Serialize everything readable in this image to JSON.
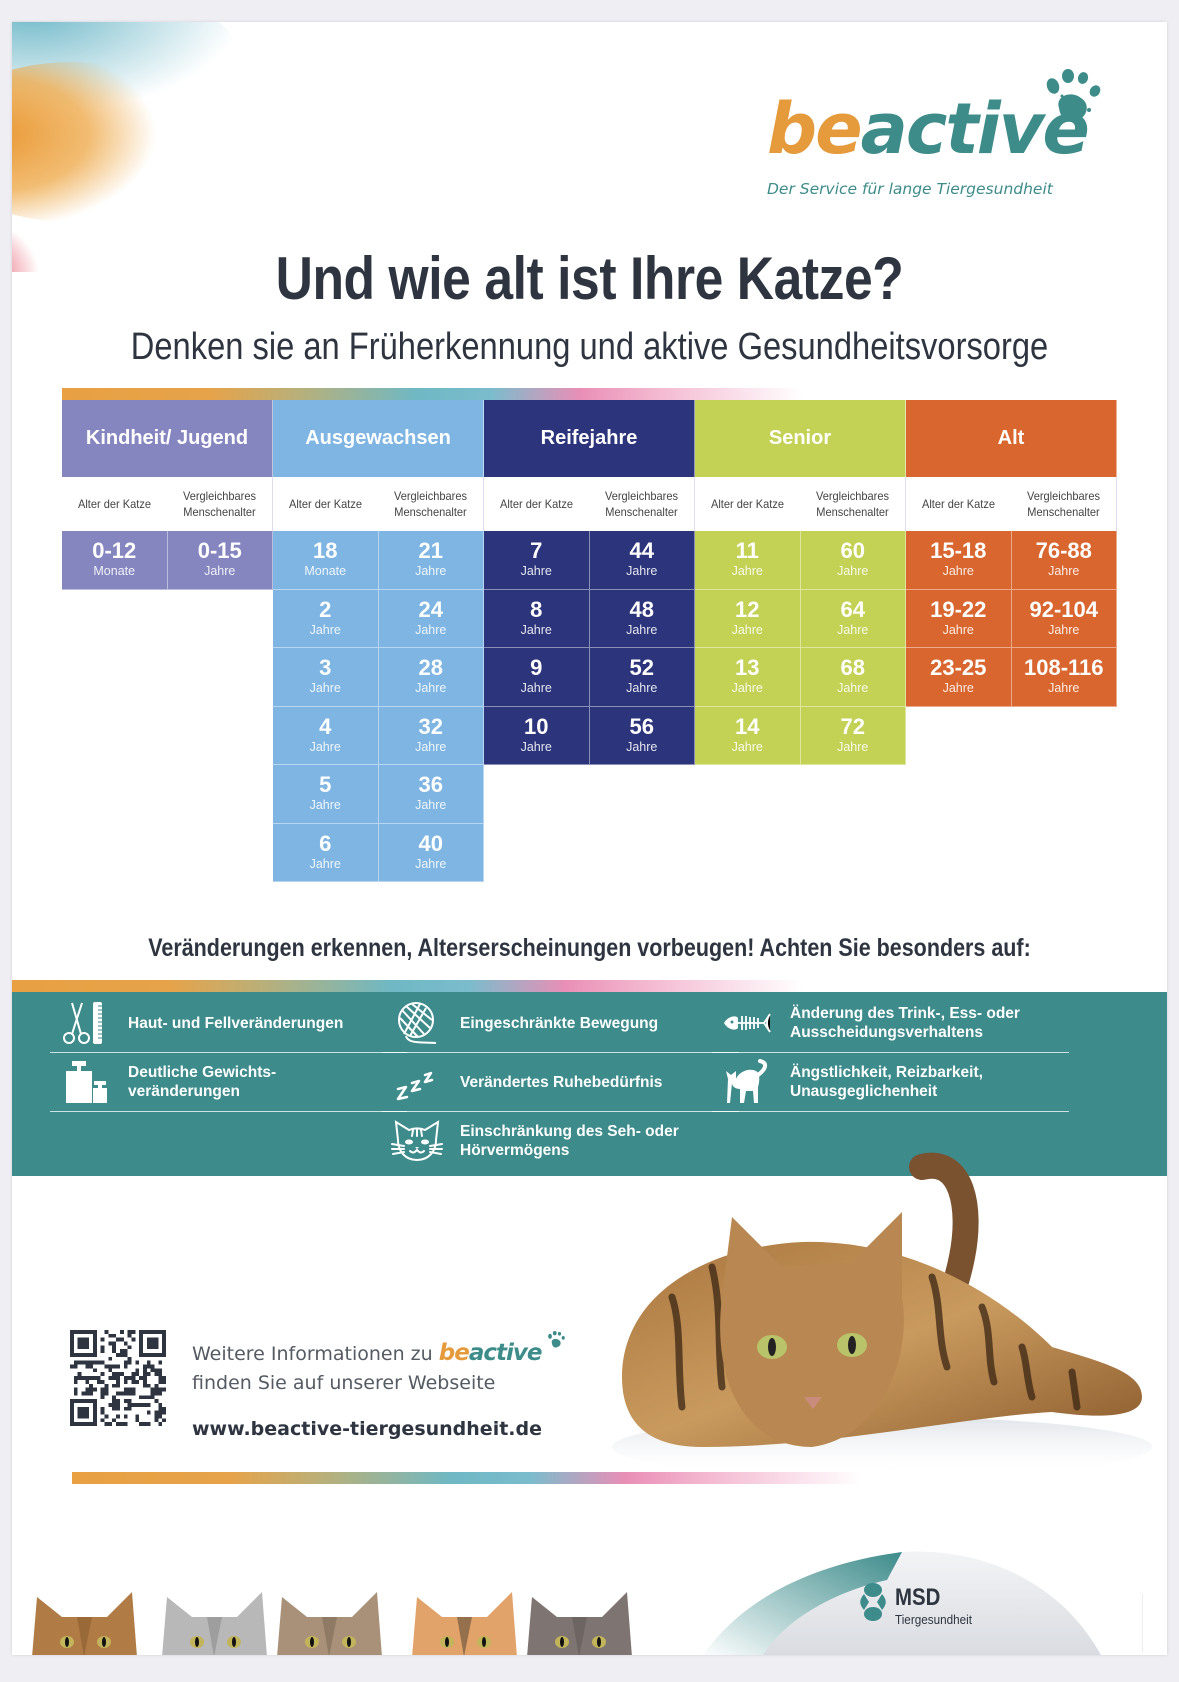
{
  "brand": {
    "logo_be": "be",
    "logo_active": "active",
    "tagline": "Der Service für lange Tiergesundheit",
    "colors": {
      "orange": "#e59a3b",
      "teal": "#3d8c8a"
    }
  },
  "title": "Und wie alt ist Ihre Katze?",
  "subtitle": "Denken sie an Früherkennung und aktive Gesundheitsvorsorge",
  "age_table": {
    "subheader": {
      "cat_age": "Alter der Katze",
      "human_age": "Vergleichbares Menschenalter"
    },
    "groups": [
      {
        "name": "Kindheit/ Jugend",
        "color": "#8586c0",
        "rows": [
          {
            "cat": "0-12",
            "cat_unit": "Monate",
            "human": "0-15",
            "human_unit": "Jahre"
          }
        ]
      },
      {
        "name": "Ausgewachsen",
        "color": "#7eb5e2",
        "rows": [
          {
            "cat": "18",
            "cat_unit": "Monate",
            "human": "21",
            "human_unit": "Jahre"
          },
          {
            "cat": "2",
            "cat_unit": "Jahre",
            "human": "24",
            "human_unit": "Jahre"
          },
          {
            "cat": "3",
            "cat_unit": "Jahre",
            "human": "28",
            "human_unit": "Jahre"
          },
          {
            "cat": "4",
            "cat_unit": "Jahre",
            "human": "32",
            "human_unit": "Jahre"
          },
          {
            "cat": "5",
            "cat_unit": "Jahre",
            "human": "36",
            "human_unit": "Jahre"
          },
          {
            "cat": "6",
            "cat_unit": "Jahre",
            "human": "40",
            "human_unit": "Jahre"
          }
        ]
      },
      {
        "name": "Reifejahre",
        "color": "#2c347b",
        "rows": [
          {
            "cat": "7",
            "cat_unit": "Jahre",
            "human": "44",
            "human_unit": "Jahre"
          },
          {
            "cat": "8",
            "cat_unit": "Jahre",
            "human": "48",
            "human_unit": "Jahre"
          },
          {
            "cat": "9",
            "cat_unit": "Jahre",
            "human": "52",
            "human_unit": "Jahre"
          },
          {
            "cat": "10",
            "cat_unit": "Jahre",
            "human": "56",
            "human_unit": "Jahre"
          }
        ]
      },
      {
        "name": "Senior",
        "color": "#c3d155",
        "rows": [
          {
            "cat": "11",
            "cat_unit": "Jahre",
            "human": "60",
            "human_unit": "Jahre"
          },
          {
            "cat": "12",
            "cat_unit": "Jahre",
            "human": "64",
            "human_unit": "Jahre"
          },
          {
            "cat": "13",
            "cat_unit": "Jahre",
            "human": "68",
            "human_unit": "Jahre"
          },
          {
            "cat": "14",
            "cat_unit": "Jahre",
            "human": "72",
            "human_unit": "Jahre"
          }
        ]
      },
      {
        "name": "Alt",
        "color": "#d9662e",
        "rows": [
          {
            "cat": "15-18",
            "cat_unit": "Jahre",
            "human": "76-88",
            "human_unit": "Jahre"
          },
          {
            "cat": "19-22",
            "cat_unit": "Jahre",
            "human": "92-104",
            "human_unit": "Jahre"
          },
          {
            "cat": "23-25",
            "cat_unit": "Jahre",
            "human": "108-116",
            "human_unit": "Jahre"
          }
        ]
      }
    ]
  },
  "care_heading": "Veränderungen erkennen, Alterserscheinungen vorbeugen! Achten Sie besonders auf:",
  "symptoms": {
    "band_color": "#3d8b8b",
    "columns": [
      [
        {
          "icon": "scissors-comb-icon",
          "text": "Haut- und Fellveränderungen"
        },
        {
          "icon": "weights-icon",
          "text": "Deutliche Gewichts-\nveränderungen"
        }
      ],
      [
        {
          "icon": "yarn-ball-icon",
          "text": "Eingeschränkte Bewegung"
        },
        {
          "icon": "sleep-zzz-icon",
          "text": "Verändertes Ruhebedürfnis"
        },
        {
          "icon": "cat-face-icon",
          "text": "Einschränkung des Seh- oder\nHörvermögens"
        }
      ],
      [
        {
          "icon": "fish-bone-icon",
          "text": "Änderung des Trink-, Ess- oder\nAusscheidungsverhaltens"
        },
        {
          "icon": "scared-cat-icon",
          "text": "Ängstlichkeit, Reizbarkeit,\nUnausgeglichenheit"
        }
      ]
    ]
  },
  "info": {
    "line1_prefix": "Weitere Informationen zu",
    "line1_brand_be": "be",
    "line1_brand_active": "active",
    "line2": "finden Sie auf unserer Webseite",
    "url": "www.beactive-tiergesundheit.de"
  },
  "footer": {
    "company": "MSD",
    "division": "Tiergesundheit"
  }
}
